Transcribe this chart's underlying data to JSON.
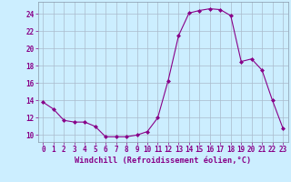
{
  "x": [
    0,
    1,
    2,
    3,
    4,
    5,
    6,
    7,
    8,
    9,
    10,
    11,
    12,
    13,
    14,
    15,
    16,
    17,
    18,
    19,
    20,
    21,
    22,
    23
  ],
  "y": [
    13.8,
    13.0,
    11.7,
    11.5,
    11.5,
    11.0,
    9.8,
    9.8,
    9.8,
    10.0,
    10.4,
    12.0,
    16.3,
    21.5,
    24.1,
    24.4,
    24.6,
    24.5,
    23.8,
    18.5,
    18.8,
    17.5,
    14.0,
    10.8
  ],
  "line_color": "#880088",
  "marker": "D",
  "marker_size": 2.0,
  "bg_color": "#cceeff",
  "grid_color": "#aabbcc",
  "xlabel": "Windchill (Refroidissement éolien,°C)",
  "xlabel_color": "#880088",
  "ylabel_ticks": [
    10,
    12,
    14,
    16,
    18,
    20,
    22,
    24
  ],
  "ylim": [
    9.2,
    25.4
  ],
  "xlim": [
    -0.5,
    23.5
  ],
  "tick_label_color": "#880088",
  "tick_fontsize": 5.5,
  "xlabel_fontsize": 6.2
}
